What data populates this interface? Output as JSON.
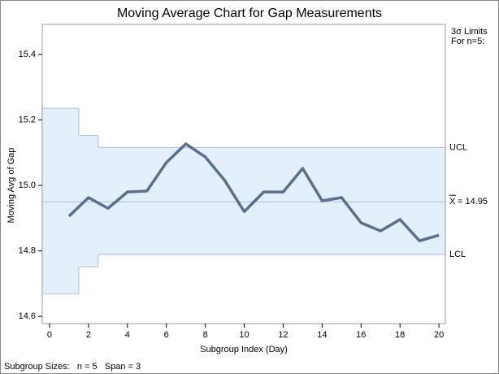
{
  "chart_data": {
    "type": "line",
    "title": "Moving Average Chart for Gap Measurements",
    "x_label": "Subgroup Index (Day)",
    "y_label": "Moving Avg of Gap",
    "limits_title": "3σ Limits",
    "limits_subtitle": "For n=5:",
    "footer": "Subgroup Sizes:   n = 5   Span = 3",
    "x": [
      1,
      2,
      3,
      4,
      5,
      6,
      7,
      8,
      9,
      10,
      11,
      12,
      13,
      14,
      15,
      16,
      17,
      18,
      19,
      20
    ],
    "series": [
      {
        "name": "Moving Avg of Gap",
        "color": "#5b6f8f",
        "values": [
          14.906,
          14.963,
          14.93,
          14.98,
          14.983,
          15.07,
          15.127,
          15.087,
          15.015,
          14.92,
          14.98,
          14.98,
          15.052,
          14.953,
          14.963,
          14.886,
          14.861,
          14.896,
          14.831,
          14.848
        ]
      }
    ],
    "limit_x": [
      1,
      2,
      3
    ],
    "ucl": [
      15.236,
      15.153,
      15.116
    ],
    "lcl": [
      14.669,
      14.752,
      14.789
    ],
    "ucl_name": "UCL",
    "lcl_name": "LCL",
    "center_name": "X",
    "center": {
      "value": 14.95,
      "label": "= 14.95"
    },
    "band_color": "#e4effc",
    "limit_color": "#aebfd6",
    "xlim": [
      -0.375,
      20.33
    ],
    "ylim": [
      14.578,
      15.492
    ],
    "xticks": [
      0,
      2,
      4,
      6,
      8,
      10,
      12,
      14,
      16,
      18,
      20
    ],
    "yticks": [
      14.6,
      14.8,
      {
        "value": 15,
        "label": "15.0"
      },
      15.2,
      15.4
    ]
  }
}
